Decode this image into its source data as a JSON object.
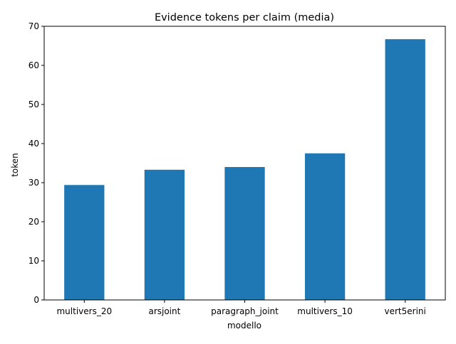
{
  "chart_data": {
    "type": "bar",
    "title": "Evidence tokens per claim (media)",
    "xlabel": "modello",
    "ylabel": "token",
    "categories": [
      "multivers_20",
      "arsjoint",
      "paragraph_joint",
      "multivers_10",
      "vert5erini"
    ],
    "values": [
      29.4,
      33.3,
      34.0,
      37.5,
      66.7
    ],
    "ylim": [
      0,
      70
    ],
    "yticks": [
      0,
      10,
      20,
      30,
      40,
      50,
      60,
      70
    ],
    "grid": false,
    "colors": {
      "bar": "#1f77b4",
      "axis": "#000000",
      "text": "#000000"
    }
  }
}
